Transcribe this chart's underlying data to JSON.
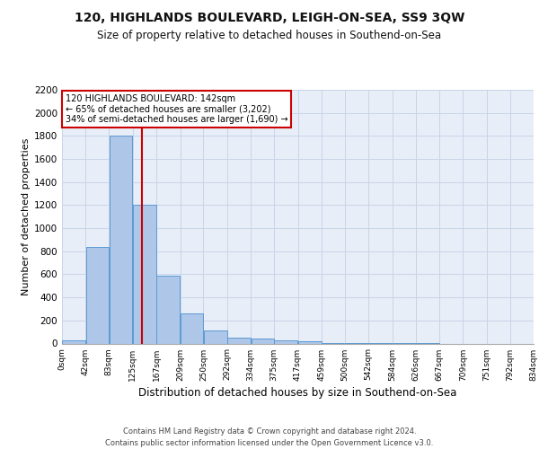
{
  "title": "120, HIGHLANDS BOULEVARD, LEIGH-ON-SEA, SS9 3QW",
  "subtitle": "Size of property relative to detached houses in Southend-on-Sea",
  "xlabel": "Distribution of detached houses by size in Southend-on-Sea",
  "ylabel": "Number of detached properties",
  "bin_edges": [
    0,
    42,
    83,
    125,
    167,
    209,
    250,
    292,
    334,
    375,
    417,
    459,
    500,
    542,
    584,
    626,
    667,
    709,
    751,
    792,
    834
  ],
  "bar_heights": [
    30,
    840,
    1800,
    1200,
    590,
    260,
    115,
    50,
    45,
    30,
    20,
    5,
    3,
    2,
    1,
    1,
    0,
    0,
    0,
    0
  ],
  "bar_color": "#aec6e8",
  "bar_edgecolor": "#5b9bd5",
  "grid_color": "#c8d4e8",
  "background_color": "#e8eef8",
  "property_size": 142,
  "vline_color": "#cc0000",
  "annotation_text": "120 HIGHLANDS BOULEVARD: 142sqm\n← 65% of detached houses are smaller (3,202)\n34% of semi-detached houses are larger (1,690) →",
  "annotation_box_color": "#ffffff",
  "annotation_border_color": "#cc0000",
  "footer": "Contains HM Land Registry data © Crown copyright and database right 2024.\nContains public sector information licensed under the Open Government Licence v3.0.",
  "ylim": [
    0,
    2200
  ],
  "yticks": [
    0,
    200,
    400,
    600,
    800,
    1000,
    1200,
    1400,
    1600,
    1800,
    2000,
    2200
  ]
}
